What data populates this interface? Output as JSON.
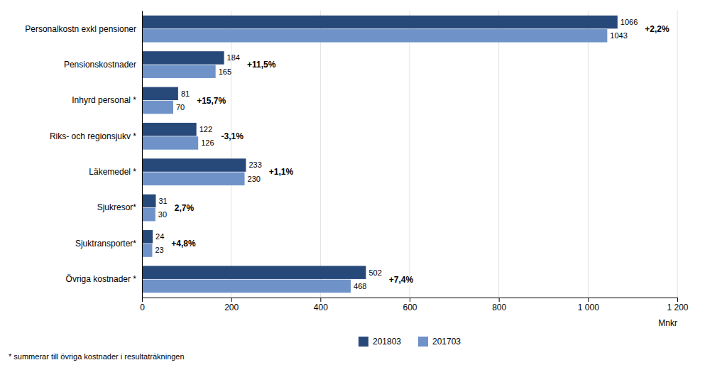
{
  "chart_data": {
    "type": "bar",
    "orientation": "horizontal",
    "categories": [
      "Personalkostn exkl pensioner",
      "Pensionskostnader",
      "Inhyrd personal *",
      "Riks- och regionsjukv *",
      "Läkemedel *",
      "Sjukresor*",
      "Sjuktransporter*",
      "Övriga kostnader *"
    ],
    "series": [
      {
        "name": "201803",
        "color": "#27497a",
        "values": [
          1066,
          184,
          81,
          122,
          233,
          31,
          24,
          502
        ]
      },
      {
        "name": "201703",
        "color": "#6f93c8",
        "values": [
          1043,
          165,
          70,
          126,
          230,
          30,
          23,
          468
        ]
      }
    ],
    "changes": [
      "+2,2%",
      "+11,5%",
      "+15,7%",
      "-3,1%",
      "+1,1%",
      "2,7%",
      "+4,8%",
      "+7,4%"
    ],
    "xlim": [
      0,
      1200
    ],
    "xticks": [
      0,
      200,
      400,
      600,
      800,
      {
        "value": 1000,
        "label": "1 000"
      },
      {
        "value": 1200,
        "label": "1 200"
      }
    ],
    "xlabel": "Mnkr",
    "annotations": [
      "* summerar till övriga kostnader i resultaträkningen"
    ],
    "grid": true,
    "data_labels": true,
    "legend": "bottom"
  }
}
